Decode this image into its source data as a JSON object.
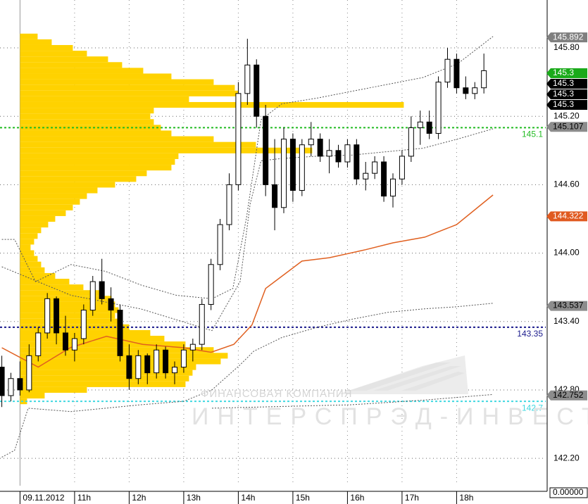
{
  "chart_data": {
    "type": "candlestick",
    "xlim": [
      578,
      1178
    ],
    "ylim": [
      141.96,
      146.22
    ],
    "xticks": [
      {
        "value": 600,
        "label": "09.11.2012"
      },
      {
        "value": 660,
        "label": "11h"
      },
      {
        "value": 720,
        "label": "12h"
      },
      {
        "value": 780,
        "label": "13h"
      },
      {
        "value": 840,
        "label": "14h"
      },
      {
        "value": 900,
        "label": "15h"
      },
      {
        "value": 960,
        "label": "16h"
      },
      {
        "value": 1020,
        "label": "17h"
      },
      {
        "value": 1080,
        "label": "18h"
      }
    ],
    "yticks": [
      {
        "value": 142.2,
        "label": "142.20"
      },
      {
        "value": 142.8,
        "label": "142.80"
      },
      {
        "value": 143.4,
        "label": "143.40"
      },
      {
        "value": 144,
        "label": "144.00"
      },
      {
        "value": 144.6,
        "label": "144.60"
      },
      {
        "value": 145.2,
        "label": "145.20"
      },
      {
        "value": 145.8,
        "label": "145.80"
      }
    ],
    "grid": true,
    "x": [
      580,
      590,
      600,
      610,
      620,
      630,
      640,
      650,
      660,
      670,
      680,
      690,
      700,
      710,
      720,
      730,
      740,
      750,
      760,
      770,
      780,
      790,
      800,
      810,
      820,
      830,
      840,
      850,
      860,
      870,
      880,
      890,
      900,
      910,
      920,
      930,
      940,
      950,
      960,
      970,
      980,
      990,
      1000,
      1010,
      1020,
      1030,
      1040,
      1050,
      1060,
      1070,
      1080,
      1090,
      1100,
      1110
    ],
    "open": [
      143.0,
      142.75,
      142.9,
      142.8,
      143.1,
      143.3,
      143.6,
      143.3,
      143.15,
      143.25,
      143.5,
      143.75,
      143.6,
      143.5,
      143.1,
      142.9,
      143.1,
      142.95,
      143.15,
      142.95,
      143.0,
      143.15,
      143.2,
      143.55,
      143.9,
      144.25,
      144.6,
      145.4,
      145.65,
      145.2,
      144.6,
      144.4,
      145.0,
      144.55,
      144.95,
      145.0,
      144.85,
      144.9,
      144.8,
      144.95,
      144.65,
      144.7,
      144.8,
      144.5,
      144.65,
      144.85,
      145.1,
      145.15,
      145.05,
      145.5,
      145.7,
      145.45,
      145.4,
      145.45
    ],
    "high": [
      143.1,
      142.95,
      143.05,
      143.2,
      143.35,
      143.65,
      143.62,
      143.45,
      143.3,
      143.55,
      143.8,
      143.95,
      143.7,
      143.55,
      143.2,
      143.15,
      143.12,
      143.2,
      143.18,
      143.05,
      143.2,
      143.25,
      143.6,
      143.95,
      144.3,
      144.7,
      145.5,
      145.88,
      145.7,
      145.3,
      145.0,
      145.1,
      145.05,
      145.0,
      145.15,
      145.05,
      145.0,
      144.95,
      145.0,
      145.0,
      144.8,
      144.85,
      144.85,
      144.7,
      144.9,
      145.2,
      145.25,
      145.25,
      145.55,
      145.8,
      145.75,
      145.55,
      145.5,
      145.75
    ],
    "low": [
      142.65,
      142.7,
      142.75,
      142.78,
      143.05,
      143.25,
      143.2,
      143.1,
      143.05,
      143.2,
      143.45,
      143.55,
      143.4,
      143.05,
      142.8,
      142.85,
      142.85,
      142.9,
      142.9,
      142.85,
      142.95,
      143.05,
      143.15,
      143.5,
      143.85,
      144.2,
      144.55,
      145.3,
      145.1,
      144.5,
      144.2,
      144.35,
      144.45,
      144.5,
      144.85,
      144.8,
      144.7,
      144.75,
      144.75,
      144.6,
      144.55,
      144.65,
      144.45,
      144.4,
      144.6,
      144.8,
      144.95,
      145.0,
      145.0,
      145.45,
      145.4,
      145.35,
      145.35,
      145.4
    ],
    "close": [
      142.75,
      142.9,
      142.8,
      143.1,
      143.3,
      143.6,
      143.3,
      143.15,
      143.25,
      143.5,
      143.75,
      143.6,
      143.5,
      143.1,
      142.9,
      143.1,
      142.95,
      143.15,
      142.95,
      143.0,
      143.15,
      143.2,
      143.55,
      143.9,
      144.25,
      144.6,
      145.4,
      145.65,
      145.2,
      144.6,
      144.4,
      145.0,
      144.55,
      144.95,
      145.0,
      144.85,
      144.9,
      144.8,
      144.95,
      144.65,
      144.7,
      144.8,
      144.5,
      144.65,
      144.85,
      145.1,
      145.15,
      145.05,
      145.5,
      145.7,
      145.45,
      145.4,
      145.45,
      145.6
    ],
    "up_color": "#ffffff",
    "down_color": "#000000",
    "profile": {
      "color": "#ffd200",
      "prices": [
        145.9,
        145.85,
        145.8,
        145.75,
        145.7,
        145.65,
        145.6,
        145.55,
        145.5,
        145.45,
        145.4,
        145.35,
        145.3,
        145.25,
        145.2,
        145.15,
        145.1,
        145.05,
        145.0,
        144.95,
        144.9,
        144.85,
        144.8,
        144.75,
        144.7,
        144.65,
        144.6,
        144.55,
        144.5,
        144.45,
        144.4,
        144.35,
        144.3,
        144.25,
        144.2,
        144.15,
        144.1,
        144.05,
        144.0,
        143.95,
        143.9,
        143.85,
        143.8,
        143.75,
        143.7,
        143.65,
        143.6,
        143.55,
        143.5,
        143.45,
        143.4,
        143.35,
        143.3,
        143.25,
        143.2,
        143.15,
        143.1,
        143.05,
        143.0,
        142.95,
        142.9,
        142.85,
        142.8,
        142.75,
        142.7
      ],
      "volumes": [
        25,
        45,
        75,
        95,
        125,
        145,
        175,
        215,
        275,
        305,
        310,
        240,
        545,
        190,
        185,
        190,
        200,
        215,
        275,
        335,
        415,
        225,
        220,
        215,
        180,
        165,
        135,
        110,
        95,
        85,
        75,
        65,
        50,
        40,
        30,
        25,
        20,
        15,
        20,
        25,
        30,
        35,
        50,
        70,
        90,
        115,
        130,
        135,
        140,
        135,
        145,
        155,
        185,
        205,
        235,
        275,
        295,
        285,
        250,
        245,
        240,
        235,
        95,
        35,
        10
      ]
    },
    "lines": [
      {
        "color": "#e06020",
        "style": "solid",
        "x": [
          580,
          620,
          655,
          695,
          735,
          780,
          810,
          835,
          855,
          870,
          890,
          910,
          940,
          980,
          1010,
          1045,
          1080,
          1120
        ],
        "values": [
          143.17,
          143.0,
          143.17,
          143.27,
          143.2,
          143.17,
          143.13,
          143.2,
          143.37,
          143.69,
          143.81,
          143.93,
          143.96,
          144.03,
          144.09,
          144.14,
          144.25,
          144.51
        ]
      },
      {
        "color": "#555555",
        "style": "dotted",
        "x": [
          580,
          594,
          617,
          656,
          694,
          733,
          772,
          811,
          834,
          849,
          865,
          888,
          927,
          965,
          1004,
          1043,
          1081,
          1120
        ],
        "values": [
          144.12,
          144.12,
          143.75,
          143.9,
          143.84,
          143.72,
          143.63,
          143.6,
          143.69,
          144.31,
          145.17,
          145.31,
          145.36,
          145.42,
          145.48,
          145.54,
          145.66,
          145.9
        ]
      },
      {
        "color": "#555555",
        "style": "dotted",
        "x": [
          580,
          656,
          733,
          811,
          842,
          853,
          865,
          888,
          927,
          965,
          1004,
          1043,
          1081,
          1120
        ],
        "values": [
          143.88,
          143.63,
          143.51,
          143.32,
          143.75,
          144.43,
          144.81,
          144.83,
          144.85,
          144.86,
          144.89,
          144.92,
          145.0,
          145.09
        ]
      },
      {
        "color": "#555555",
        "style": "dotted",
        "x": [
          580,
          594,
          609,
          656,
          733,
          780,
          811,
          842,
          857,
          888,
          927,
          965,
          1004,
          1043,
          1081,
          1120
        ],
        "values": [
          142.21,
          142.27,
          142.64,
          142.61,
          142.67,
          142.7,
          142.8,
          143.02,
          143.14,
          143.26,
          143.35,
          143.42,
          143.48,
          143.51,
          143.53,
          143.56
        ]
      },
      {
        "color": "#555555",
        "style": "dotted",
        "x": [
          811,
          965,
          1043,
          1120
        ],
        "values": [
          142.64,
          142.67,
          142.71,
          142.76
        ]
      }
    ],
    "levels": [
      {
        "value": 145.1,
        "color": "#22bb22"
      },
      {
        "value": 143.35,
        "color": "#1a1a8c"
      },
      {
        "value": 142.7,
        "color": "#40d8e0"
      }
    ],
    "price_labels": [
      {
        "value": 145.892,
        "color": "#7f7f7f",
        "text_color": "#ffffff"
      },
      {
        "value": 145.3,
        "color": "#1aaa1a",
        "text_color": "#ffffff"
      },
      {
        "value": 145.3,
        "color": "#000000",
        "text_color": "#ffffff"
      },
      {
        "value": 145.3,
        "color": "#000000",
        "text_color": "#ffffff"
      },
      {
        "value": 145.3,
        "color": "#000000",
        "text_color": "#ffffff"
      },
      {
        "value": 145.107,
        "color": "#8c8c8c",
        "text_color": "#000000"
      },
      {
        "value": 144.322,
        "color": "#e05a20",
        "text_color": "#ffffff"
      },
      {
        "value": 143.537,
        "color": "#8c8c8c",
        "text_color": "#000000"
      },
      {
        "value": 142.752,
        "color": "#8c8c8c",
        "text_color": "#000000"
      }
    ],
    "volume_label": {
      "value": 0,
      "label": "0.00000"
    },
    "watermark": {
      "subtitle": "ФИНАНСОВАЯ КОМПАНИЯ",
      "title": "ИНТЕРСПРЭД-ИНВЕСТ"
    }
  }
}
